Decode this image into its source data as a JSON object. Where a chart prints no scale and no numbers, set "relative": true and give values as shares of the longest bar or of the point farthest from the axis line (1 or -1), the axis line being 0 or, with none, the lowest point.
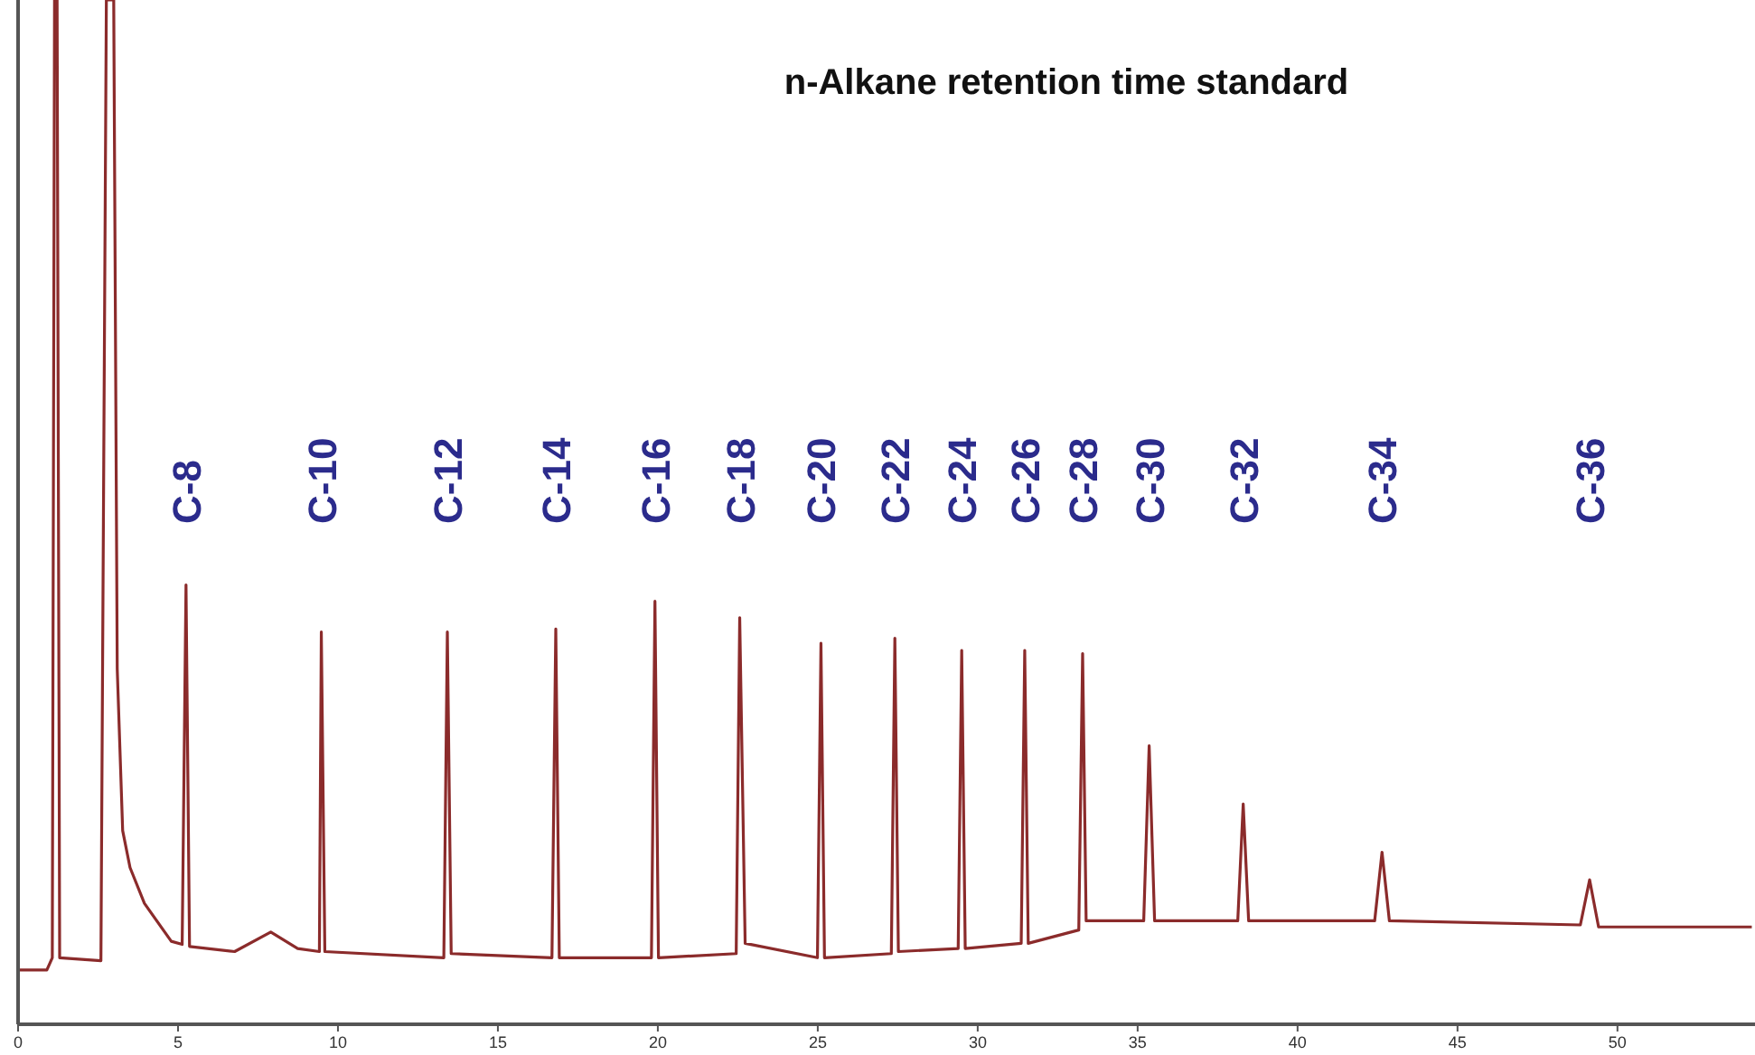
{
  "chart_data": {
    "type": "line",
    "title": "n-Alkane retention time standard",
    "relative": true,
    "tick_labels": "x",
    "grid": false,
    "marker": "none",
    "line_style": "solid",
    "xlim": [
      0,
      54.3
    ],
    "xticks": [
      0,
      5,
      10,
      15,
      20,
      25,
      30,
      35,
      40,
      45,
      50
    ],
    "series": [
      {
        "color": "#8b2b2b",
        "x": [
          0,
          0.9,
          1.07,
          1.14,
          1.22,
          1.3,
          2.59,
          2.76,
          2.99,
          3.1,
          3.27,
          3.5,
          3.95,
          4.79,
          5.13,
          5.25,
          5.36,
          6.77,
          7.9,
          8.74,
          9.42,
          9.48,
          9.59,
          13.31,
          13.42,
          13.54,
          16.69,
          16.81,
          16.92,
          19.8,
          19.91,
          20.02,
          22.45,
          22.56,
          22.73,
          24.99,
          25.1,
          25.21,
          27.3,
          27.41,
          27.52,
          29.39,
          29.5,
          29.61,
          31.36,
          31.47,
          31.58,
          33.16,
          33.28,
          33.39,
          35.19,
          35.36,
          35.53,
          38.13,
          38.3,
          38.47,
          42.41,
          42.64,
          42.87,
          48.84,
          49.13,
          49.41,
          54.2
        ],
        "values": [
          0.053,
          0.053,
          0.065,
          1,
          1,
          0.065,
          0.062,
          1,
          1,
          0.347,
          0.189,
          0.153,
          0.118,
          0.081,
          0.078,
          0.429,
          0.076,
          0.071,
          0.09,
          0.074,
          0.071,
          0.383,
          0.071,
          0.065,
          0.383,
          0.069,
          0.065,
          0.386,
          0.065,
          0.065,
          0.413,
          0.065,
          0.069,
          0.397,
          0.079,
          0.065,
          0.372,
          0.065,
          0.069,
          0.377,
          0.071,
          0.074,
          0.365,
          0.074,
          0.079,
          0.365,
          0.079,
          0.092,
          0.362,
          0.101,
          0.101,
          0.272,
          0.101,
          0.101,
          0.215,
          0.101,
          0.101,
          0.168,
          0.101,
          0.097,
          0.141,
          0.095,
          0.095
        ]
      }
    ],
    "annotations": [
      "C-8",
      "C-10",
      "C-12",
      "C-14",
      "C-16",
      "C-18",
      "C-20",
      "C-22",
      "C-24",
      "C-26",
      "C-28",
      "C-30",
      "C-32",
      "C-34",
      "C-36"
    ]
  }
}
